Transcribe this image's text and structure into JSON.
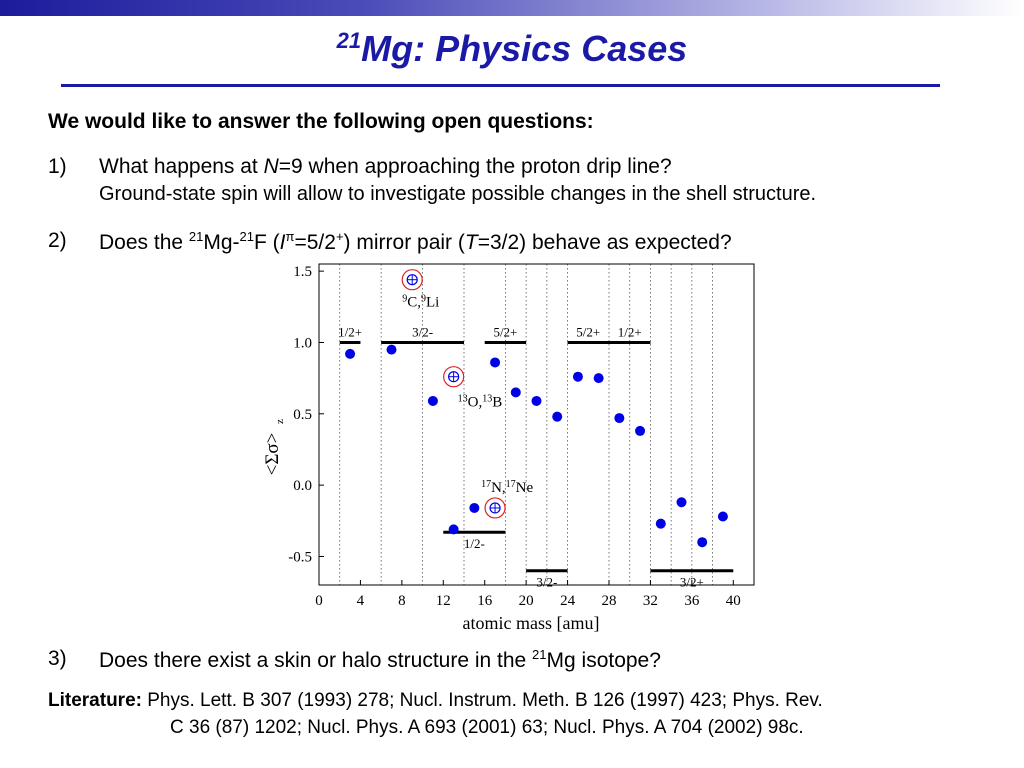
{
  "slide": {
    "title_sup": "21",
    "title_main": "Mg: Physics Cases",
    "intro": "We would like to answer the following open questions:",
    "q1": {
      "num": "1)",
      "pre": "What happens at ",
      "var": "N",
      "post": "=9 when approaching the proton drip line?",
      "sub": "Ground-state spin will allow to investigate possible changes in the shell structure."
    },
    "q2": {
      "num": "2)",
      "p1": "Does the ",
      "s1": "21",
      "p2": "Mg-",
      "s2": "21",
      "p3": "F (",
      "var": "I",
      "s3": "π",
      "p4": "=5/2",
      "s4": "+",
      "p5": ") mirror pair (",
      "var2": "T",
      "p6": "=3/2) behave as expected?"
    },
    "q3": {
      "num": "3)",
      "p1": "Does there exist a skin or halo structure in the ",
      "s1": "21",
      "p2": "Mg isotope?"
    },
    "literature": {
      "label": "Literature:",
      "line1": " Phys. Lett. B 307 (1993) 278; Nucl. Instrum. Meth. B 126 (1997) 423; Phys. Rev.",
      "line2": "C 36 (87) 1202; Nucl. Phys. A 693 (2001) 63; Nucl. Phys. A 704 (2002) 98c."
    }
  },
  "chart_data": {
    "type": "scatter",
    "xlabel": "atomic mass [amu]",
    "ylabel": "<Σσ>",
    "ylabel_sub": "z",
    "xlim": [
      0,
      42
    ],
    "ylim": [
      -0.7,
      1.55
    ],
    "xticks": [
      0,
      4,
      8,
      12,
      16,
      20,
      24,
      28,
      32,
      36,
      40
    ],
    "yticks": [
      -0.5,
      0.0,
      0.5,
      1.0,
      1.5
    ],
    "ytick_labels": [
      "-0.5",
      "0.0",
      "0.5",
      "1.0",
      "1.5"
    ],
    "vgrid": [
      2,
      6,
      10,
      14,
      18,
      20,
      22,
      24,
      28,
      30,
      32,
      34,
      36,
      38
    ],
    "points": [
      {
        "x": 3,
        "y": 0.92
      },
      {
        "x": 7,
        "y": 0.95
      },
      {
        "x": 11,
        "y": 0.59
      },
      {
        "x": 13,
        "y": -0.31
      },
      {
        "x": 15,
        "y": -0.16
      },
      {
        "x": 17,
        "y": 0.86
      },
      {
        "x": 19,
        "y": 0.65
      },
      {
        "x": 21,
        "y": 0.59
      },
      {
        "x": 23,
        "y": 0.48
      },
      {
        "x": 25,
        "y": 0.76
      },
      {
        "x": 27,
        "y": 0.75
      },
      {
        "x": 29,
        "y": 0.47
      },
      {
        "x": 31,
        "y": 0.38
      },
      {
        "x": 33,
        "y": -0.27
      },
      {
        "x": 35,
        "y": -0.12
      },
      {
        "x": 37,
        "y": -0.4
      },
      {
        "x": 39,
        "y": -0.22
      }
    ],
    "special_points": [
      {
        "x": 9,
        "y": 1.44,
        "label_sup": "9",
        "label_a": "C,",
        "label_sup2": "9",
        "label_b": "Li"
      },
      {
        "x": 13,
        "y": 0.76,
        "label_sup": "13",
        "label_a": "O,",
        "label_sup2": "13",
        "label_b": "B"
      },
      {
        "x": 17,
        "y": -0.16,
        "label_sup": "17",
        "label_a": "N,",
        "label_sup2": "17",
        "label_b": "Ne"
      }
    ],
    "shell_lines": [
      {
        "x1": 2,
        "x2": 4,
        "y": 1.0,
        "label": "1/2+"
      },
      {
        "x1": 6,
        "x2": 14,
        "y": 1.0,
        "label": "3/2-"
      },
      {
        "x1": 16,
        "x2": 20,
        "y": 1.0,
        "label": "5/2+"
      },
      {
        "x1": 24,
        "x2": 28,
        "y": 1.0,
        "label": "5/2+"
      },
      {
        "x1": 28,
        "x2": 32,
        "y": 1.0,
        "label": "1/2+"
      },
      {
        "x1": 12,
        "x2": 18,
        "y": -0.33,
        "label": "1/2-"
      },
      {
        "x1": 20,
        "x2": 24,
        "y": -0.6,
        "label": "3/2-"
      },
      {
        "x1": 32,
        "x2": 40,
        "y": -0.6,
        "label": "3/2+"
      }
    ]
  }
}
